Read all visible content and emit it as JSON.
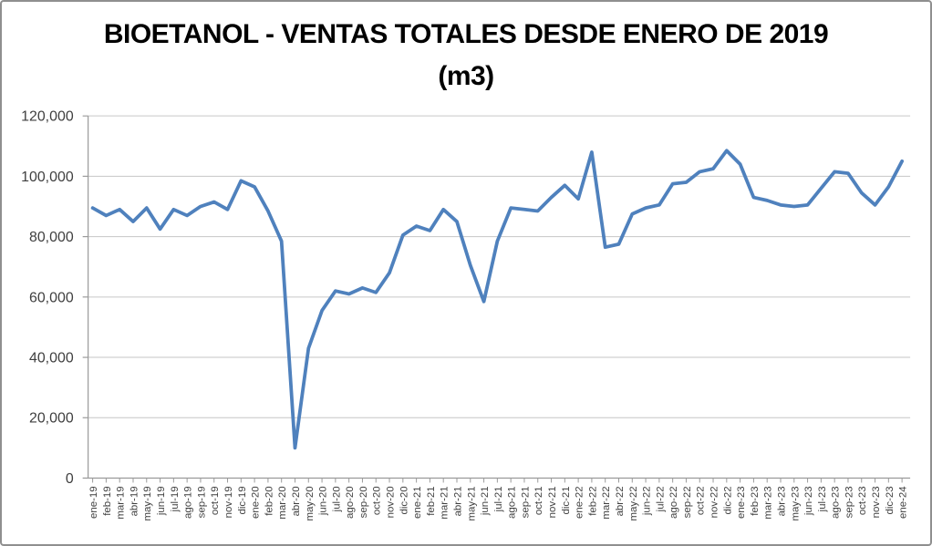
{
  "title": {
    "line1": "BIOETANOL - VENTAS TOTALES DESDE ENERO DE 2019",
    "line2": "(m3)"
  },
  "chart_data": {
    "type": "line",
    "title": "BIOETANOL - VENTAS TOTALES DESDE ENERO DE 2019 (m3)",
    "xlabel": "",
    "ylabel": "",
    "ylim": [
      0,
      120000
    ],
    "ytick_interval": 20000,
    "ytick_labels": [
      "0",
      "20,000",
      "40,000",
      "60,000",
      "80,000",
      "100,000",
      "120,000"
    ],
    "grid": true,
    "legend": "none",
    "line_color": "#4F81BD",
    "gridline_color": "#C6C6C6",
    "axis_color": "#9A9A9A",
    "label_color": "#3F3F3F",
    "categories": [
      "ene-19",
      "feb-19",
      "mar-19",
      "abr-19",
      "may-19",
      "jun-19",
      "jul-19",
      "ago-19",
      "sep-19",
      "oct-19",
      "nov-19",
      "dic-19",
      "ene-20",
      "feb-20",
      "mar-20",
      "abr-20",
      "may-20",
      "jun-20",
      "jul-20",
      "ago-20",
      "sep-20",
      "oct-20",
      "nov-20",
      "dic-20",
      "ene-21",
      "feb-21",
      "mar-21",
      "abr-21",
      "may-21",
      "jun-21",
      "jul-21",
      "ago-21",
      "sep-21",
      "oct-21",
      "nov-21",
      "dic-21",
      "ene-22",
      "feb-22",
      "mar-22",
      "abr-22",
      "may-22",
      "jun-22",
      "jul-22",
      "ago-22",
      "sep-22",
      "oct-22",
      "nov-22",
      "dic-22",
      "ene-23",
      "feb-23",
      "mar-23",
      "abr-23",
      "may-23",
      "jun-23",
      "jul-23",
      "ago-23",
      "sep-23",
      "oct-23",
      "nov-23",
      "dic-23",
      "ene-24"
    ],
    "values": [
      89500,
      87000,
      89000,
      85000,
      89500,
      82500,
      89000,
      87000,
      90000,
      91500,
      89000,
      98500,
      96500,
      88500,
      78500,
      10000,
      43000,
      55500,
      62000,
      61000,
      63000,
      61500,
      68000,
      80500,
      83500,
      82000,
      89000,
      85000,
      70500,
      58500,
      78500,
      89500,
      89000,
      88500,
      93000,
      97000,
      92500,
      108000,
      76500,
      77500,
      87500,
      89500,
      90500,
      97500,
      98000,
      101500,
      102500,
      108500,
      104000,
      93000,
      92000,
      90500,
      90000,
      90500,
      96000,
      101500,
      101000,
      94500,
      90500,
      96500,
      105000
    ]
  }
}
